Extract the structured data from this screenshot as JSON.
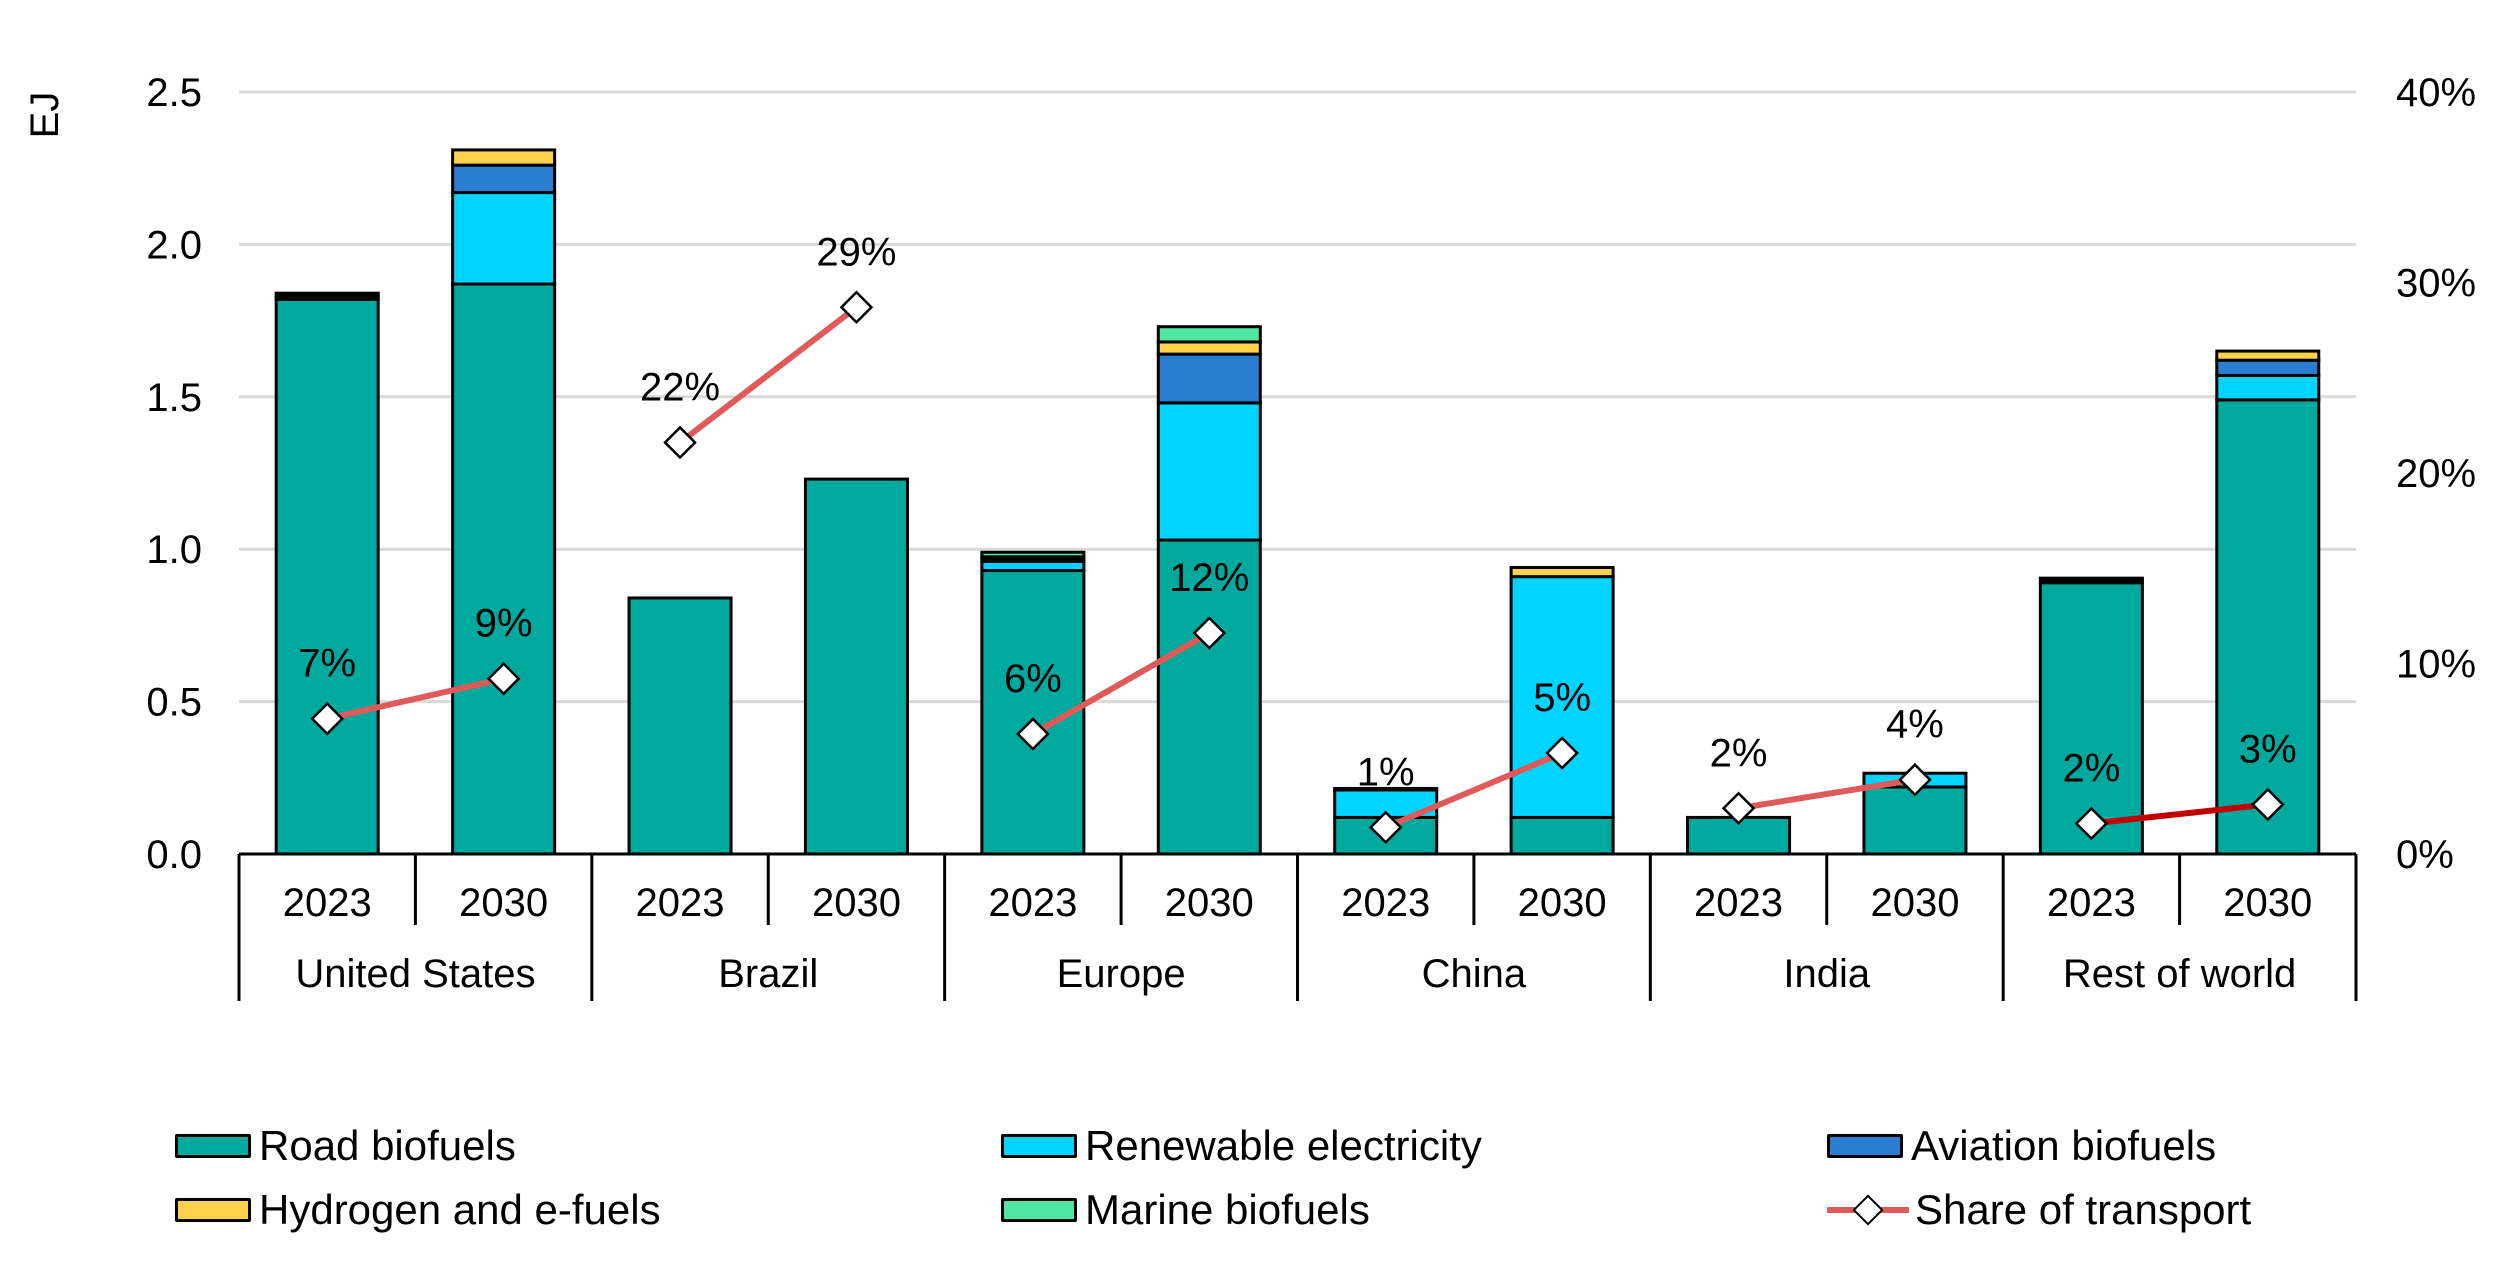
{
  "chart_data": {
    "type": "bar",
    "subtype": "stacked-bar-with-line",
    "title": "",
    "ylabel": "EJ",
    "y2label": "",
    "ylim": [
      0,
      2.5
    ],
    "y2lim": [
      0,
      0.4
    ],
    "yticks": [
      "0.0",
      "0.5",
      "1.0",
      "1.5",
      "2.0",
      "2.5"
    ],
    "yticks_values": [
      0,
      0.5,
      1.0,
      1.5,
      2.0,
      2.5
    ],
    "y2ticks": [
      "0%",
      "10%",
      "20%",
      "30%",
      "40%"
    ],
    "y2ticks_values": [
      0,
      0.1,
      0.2,
      0.3,
      0.4
    ],
    "grid": true,
    "legend_position": "bottom",
    "groups": [
      "United States",
      "Brazil",
      "Europe",
      "China",
      "India",
      "Rest of world"
    ],
    "years": [
      "2023",
      "2030"
    ],
    "categories": [
      "United States 2023",
      "United States 2030",
      "Brazil 2023",
      "Brazil 2030",
      "Europe 2023",
      "Europe 2030",
      "China 2023",
      "China 2030",
      "India 2023",
      "India 2030",
      "Rest of world 2023",
      "Rest of world 2030"
    ],
    "series": [
      {
        "name": "Road biofuels",
        "color": "#00A99D",
        "values": [
          1.82,
          1.87,
          0.84,
          1.23,
          0.93,
          1.03,
          0.12,
          0.12,
          0.12,
          0.22,
          0.89,
          1.49
        ]
      },
      {
        "name": "Renewable electricity",
        "color": "#00D4FF",
        "values": [
          0.01,
          0.3,
          0.0,
          0.0,
          0.03,
          0.45,
          0.09,
          0.79,
          0.0,
          0.045,
          0.0,
          0.08
        ]
      },
      {
        "name": "Aviation biofuels",
        "color": "#2A7DD1",
        "values": [
          0.01,
          0.09,
          0.0,
          0.0,
          0.01,
          0.16,
          0.005,
          0.0,
          0.0,
          0.0,
          0.01,
          0.05
        ]
      },
      {
        "name": "Hydrogen and e-fuels",
        "color": "#FFD24D",
        "values": [
          0.0,
          0.05,
          0.0,
          0.0,
          0.005,
          0.04,
          0.0,
          0.03,
          0.0,
          0.0,
          0.005,
          0.03
        ]
      },
      {
        "name": "Marine biofuels",
        "color": "#4FE6A0",
        "values": [
          0.0,
          0.0,
          0.0,
          0.0,
          0.015,
          0.05,
          0.0,
          0.0,
          0.0,
          0.0,
          0.0,
          0.0
        ]
      }
    ],
    "line_series": {
      "name": "Share of transport",
      "axis": "right",
      "color": "#E05A5A",
      "values": [
        0.07,
        0.09,
        0.22,
        0.29,
        0.06,
        0.12,
        0.01,
        0.05,
        0.02,
        0.04,
        0.02,
        0.03
      ],
      "point_values": [
        0.071,
        0.092,
        0.216,
        0.287,
        0.063,
        0.116,
        0.014,
        0.053,
        0.024,
        0.039,
        0.016,
        0.026
      ],
      "labels": [
        "7%",
        "9%",
        "22%",
        "29%",
        "6%",
        "12%",
        "1%",
        "5%",
        "2%",
        "4%",
        "2%",
        "3%"
      ],
      "segment_colors": [
        "#E05A5A",
        "#E05A5A",
        "#E05A5A",
        "#E05A5A",
        "#E05A5A",
        "#C00000"
      ]
    }
  },
  "legend": {
    "items": [
      {
        "label": "Road biofuels",
        "color": "#00A99D",
        "kind": "box"
      },
      {
        "label": "Renewable electricity",
        "color": "#00D4FF",
        "kind": "box"
      },
      {
        "label": "Aviation biofuels",
        "color": "#2A7DD1",
        "kind": "box"
      },
      {
        "label": "Hydrogen and e-fuels",
        "color": "#FFD24D",
        "kind": "box"
      },
      {
        "label": "Marine biofuels",
        "color": "#4FE6A0",
        "kind": "box"
      },
      {
        "label": "Share of transport",
        "color": "#E05A5A",
        "kind": "line"
      }
    ]
  }
}
